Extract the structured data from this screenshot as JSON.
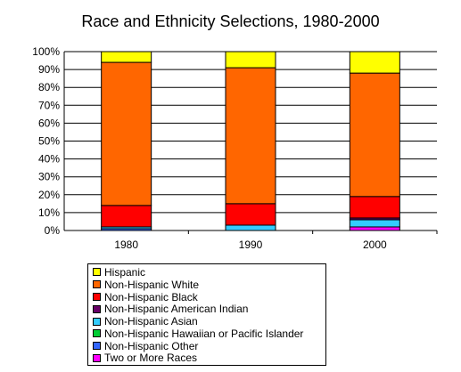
{
  "chart_data": {
    "type": "bar",
    "stacked": true,
    "title": "Race and Ethnicity Selections, 1980-2000",
    "categories": [
      "1980",
      "1990",
      "2000"
    ],
    "ylim": [
      0,
      100
    ],
    "yticks": [
      "0%",
      "10%",
      "20%",
      "30%",
      "40%",
      "50%",
      "60%",
      "70%",
      "80%",
      "90%",
      "100%"
    ],
    "grid": true,
    "legend_position": "bottom",
    "series": [
      {
        "name": "Two or More Races",
        "color": "#ff00ff",
        "values": [
          0,
          0,
          2
        ]
      },
      {
        "name": "Non-Hispanic Other",
        "color": "#3366ff",
        "values": [
          1,
          0,
          0
        ]
      },
      {
        "name": "Non-Hispanic Hawaiian or Pacific Islander",
        "color": "#00cc33",
        "values": [
          0,
          0,
          0
        ]
      },
      {
        "name": "Non-Hispanic Asian",
        "color": "#33ccff",
        "values": [
          1,
          3,
          4
        ]
      },
      {
        "name": "Non-Hispanic American Indian",
        "color": "#660066",
        "values": [
          0,
          0,
          1
        ]
      },
      {
        "name": "Non-Hispanic Black",
        "color": "#ff0000",
        "values": [
          12,
          12,
          12
        ]
      },
      {
        "name": "Non-Hispanic White",
        "color": "#ff6600",
        "values": [
          80,
          76,
          69
        ]
      },
      {
        "name": "Hispanic",
        "color": "#ffff00",
        "values": [
          6,
          9,
          12
        ]
      }
    ]
  },
  "legend_order": [
    "Hispanic",
    "Non-Hispanic White",
    "Non-Hispanic Black",
    "Non-Hispanic American Indian",
    "Non-Hispanic Asian",
    "Non-Hispanic Hawaiian or Pacific Islander",
    "Non-Hispanic Other",
    "Two or More Races"
  ]
}
